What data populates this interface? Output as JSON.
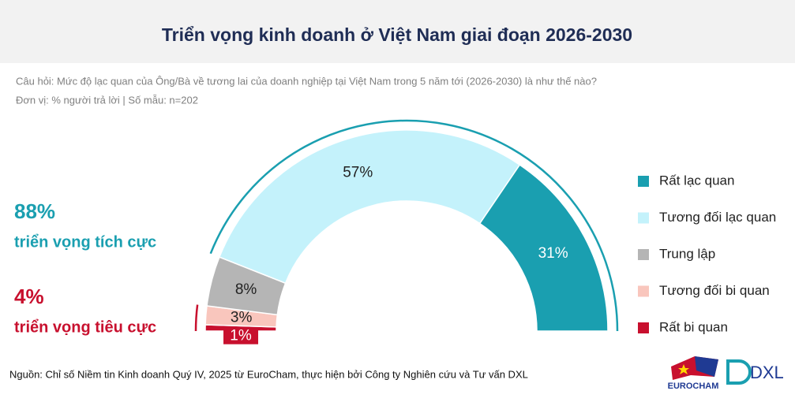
{
  "chart_data": {
    "type": "half-donut",
    "title": "Triển vọng kinh doanh ở Việt Nam giai đoạn 2026-2030",
    "subtitle": "Câu hỏi: Mức độ lạc quan của Ông/Bà về tương lai của doanh nghiệp tại Việt Nam trong 5 năm tới (2026-2030) là như thế nào?",
    "unit_note": "Đơn vị: % người trả lời | Số mẫu: n=202",
    "series": [
      {
        "name": "Rất bi quan",
        "color": "#c8102e",
        "values": [
          1
        ],
        "value_labels": [
          "1%"
        ],
        "label_color": "#ffffff"
      },
      {
        "name": "Tương đối bi quan",
        "color": "#f9c6bd",
        "values": [
          3
        ],
        "value_labels": [
          "3%"
        ],
        "label_color": "#222222"
      },
      {
        "name": "Trung lập",
        "color": "#b5b5b5",
        "values": [
          8
        ],
        "value_labels": [
          "8%"
        ],
        "label_color": "#222222"
      },
      {
        "name": "Tương đối lạc quan",
        "color": "#c4f2fb",
        "values": [
          57
        ],
        "value_labels": [
          "57%"
        ],
        "label_color": "#222222"
      },
      {
        "name": "Rất lạc quan",
        "color": "#1a9fb0",
        "values": [
          31
        ],
        "value_labels": [
          "31%"
        ],
        "label_color": "#ffffff"
      }
    ],
    "annotations": [
      {
        "value": 88,
        "label": "88%",
        "text": "triển vọng tích cực",
        "color": "#1a9fb0",
        "side": "end"
      },
      {
        "value": 4,
        "label": "4%",
        "text": "triển vọng tiêu cực",
        "color": "#c8102e",
        "side": "start"
      }
    ],
    "source": "Nguồn: Chỉ số Niềm tin Kinh doanh Quý IV, 2025 từ EuroCham, thực hiện bởi Công ty Nghiên cứu và Tư vấn DXL",
    "logos": [
      "EUROCHAM",
      "DXL"
    ]
  }
}
